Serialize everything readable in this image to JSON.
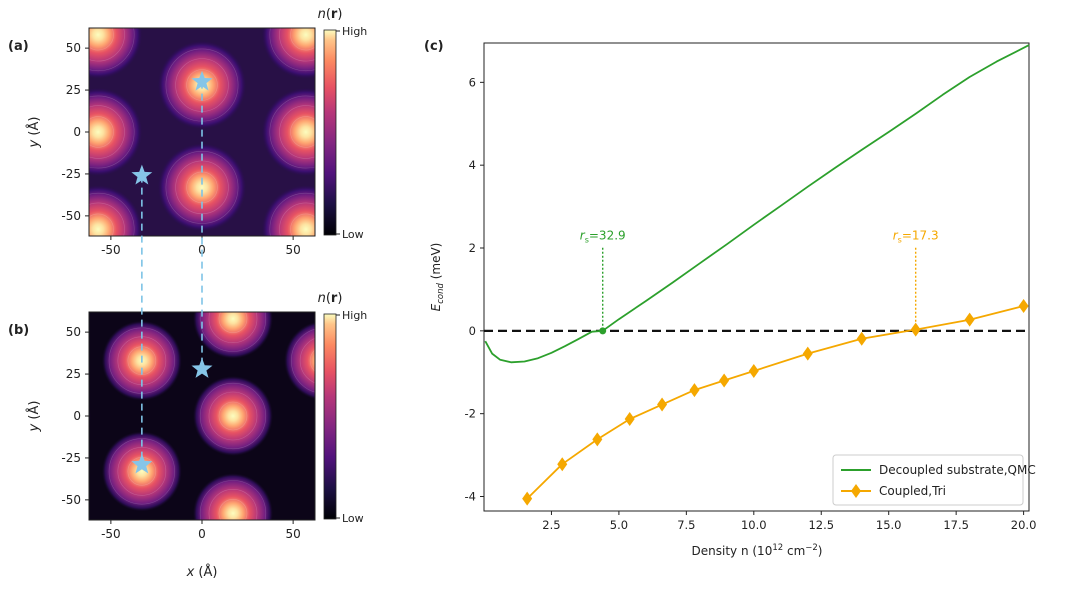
{
  "panels": {
    "a": {
      "label": "(a)",
      "xticks": [
        "-50",
        "0",
        "50"
      ],
      "yticks": [
        "50",
        "25",
        "0",
        "-25",
        "-50"
      ],
      "ylabel_italic": "y",
      "ylabel_unit": " (Å)",
      "colorbar": {
        "title_italic": "n",
        "title_rest": "(",
        "title_bold": "r",
        "title_end": ")",
        "high": "High",
        "low": "Low"
      },
      "colormap": "magma",
      "maxima_xy": [
        [
          -57,
          58
        ],
        [
          57,
          58
        ],
        [
          0,
          28
        ],
        [
          -57,
          0
        ],
        [
          57,
          0
        ],
        [
          0,
          -33
        ],
        [
          -57,
          -58
        ],
        [
          57,
          -58
        ]
      ],
      "stars_xy": [
        [
          0,
          30
        ],
        [
          -33,
          -26
        ]
      ]
    },
    "b": {
      "label": "(b)",
      "xticks": [
        "-50",
        "0",
        "50"
      ],
      "yticks": [
        "50",
        "25",
        "0",
        "-25",
        "-50"
      ],
      "xlabel_italic": "x",
      "xlabel_unit": " (Å)",
      "ylabel_italic": "y",
      "ylabel_unit": " (Å)",
      "colorbar": {
        "title_italic": "n",
        "title_rest": "(",
        "title_bold": "r",
        "title_end": ")",
        "high": "High",
        "low": "Low"
      },
      "colormap": "magma",
      "maxima_xy": [
        [
          -33,
          33
        ],
        [
          17,
          58
        ],
        [
          17,
          0
        ],
        [
          -33,
          -33
        ],
        [
          17,
          -58
        ],
        [
          67,
          33
        ],
        [
          -83,
          0
        ]
      ],
      "stars_xy": [
        [
          0,
          28
        ],
        [
          -33,
          -29
        ]
      ]
    }
  },
  "chart_data": {
    "type": "line",
    "label": "(c)",
    "xlabel": "Density n (10",
    "xlabel_sup": "12",
    "xlabel_unit": " cm",
    "xlabel_sup2": "−2",
    "xlabel_end": ")",
    "ylabel_main": "E",
    "ylabel_sub": "cond",
    "ylabel_unit": " (meV)",
    "xlim": [
      0,
      20.2
    ],
    "ylim": [
      -4.35,
      6.95
    ],
    "xticks": [
      "2.5",
      "5.0",
      "7.5",
      "10.0",
      "12.5",
      "15.0",
      "17.5",
      "20.0"
    ],
    "yticks": [
      "6",
      "4",
      "2",
      "0",
      "-2",
      "-4"
    ],
    "xtick_values": [
      2.5,
      5.0,
      7.5,
      10.0,
      12.5,
      15.0,
      17.5,
      20.0
    ],
    "ytick_values": [
      6,
      4,
      2,
      0,
      -2,
      -4
    ],
    "zero_line": true,
    "series": [
      {
        "name": "Decoupled substrate,QMC",
        "color": "#2ca02c",
        "marker": "none",
        "x": [
          0.05,
          0.3,
          0.6,
          1.0,
          1.5,
          2.0,
          2.5,
          3.0,
          3.5,
          4.0,
          4.4,
          5.0,
          6.0,
          7.0,
          8.0,
          9.0,
          10.0,
          11.0,
          12.0,
          13.0,
          14.0,
          15.0,
          16.0,
          17.0,
          18.0,
          19.0,
          20.2
        ],
        "y": [
          -0.25,
          -0.55,
          -0.7,
          -0.76,
          -0.74,
          -0.66,
          -0.53,
          -0.37,
          -0.2,
          -0.02,
          0.0,
          0.28,
          0.72,
          1.17,
          1.63,
          2.09,
          2.56,
          3.02,
          3.48,
          3.93,
          4.37,
          4.8,
          5.24,
          5.7,
          6.13,
          6.5,
          6.9
        ]
      },
      {
        "name": "Coupled,Tri",
        "color": "#f5a800",
        "marker": "diamond",
        "x": [
          1.6,
          2.9,
          4.2,
          5.4,
          6.6,
          7.8,
          8.9,
          10.0,
          12.0,
          14.0,
          16.0,
          18.0,
          20.0
        ],
        "y": [
          -4.05,
          -3.22,
          -2.62,
          -2.13,
          -1.78,
          -1.43,
          -1.2,
          -0.97,
          -0.55,
          -0.19,
          0.03,
          0.27,
          0.6
        ]
      }
    ],
    "annotations": [
      {
        "pre": "r",
        "sub": "s",
        "text": "=32.9",
        "x": 4.4,
        "y": 0.0,
        "text_y": 2.2,
        "color": "#2ca02c"
      },
      {
        "pre": "r",
        "sub": "s",
        "text": "=17.3",
        "x": 16.0,
        "y": 0.03,
        "text_y": 2.2,
        "color": "#f5a800"
      }
    ],
    "legend": "bottom-right"
  }
}
